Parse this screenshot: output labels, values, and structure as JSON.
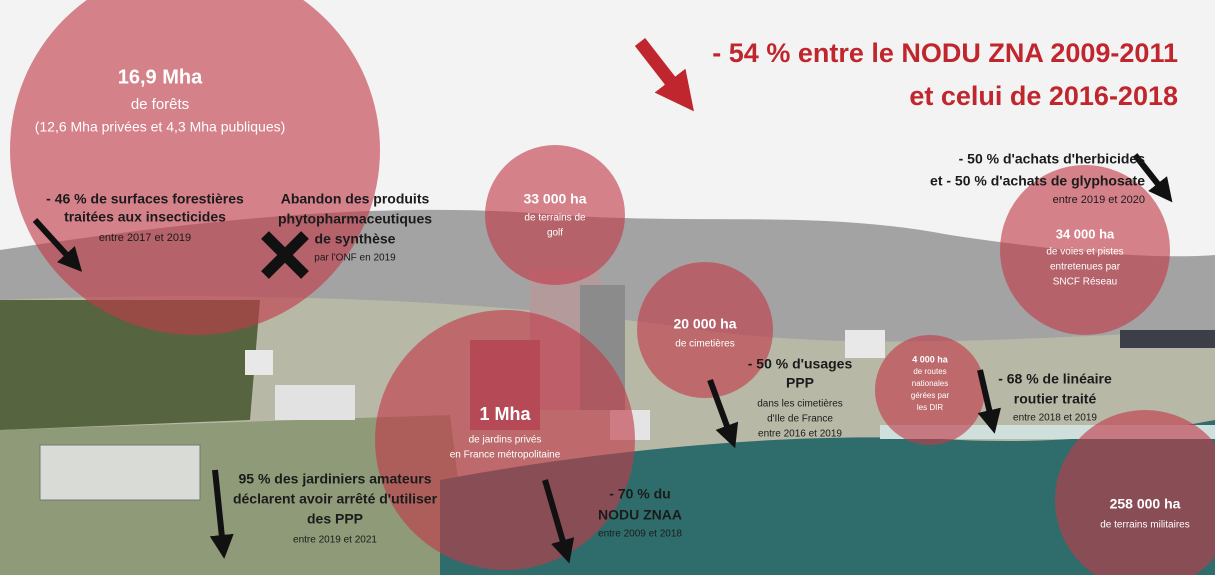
{
  "headline": [
    "- 54 % entre le NODU ZNA 2009-2011",
    "et celui de 2016-2018"
  ],
  "forests": [
    "16,9 Mha",
    "de forêts",
    "(12,6 Mha privées et 4,3 Mha publiques)"
  ],
  "insecticides": [
    "- 46 % de surfaces forestières",
    "traitées aux insecticides",
    "entre 2017 et 2019"
  ],
  "onf": [
    "Abandon des produits",
    "phytopharmaceutiques",
    "de synthèse",
    "par l'ONF en 2019"
  ],
  "golf": [
    "33 000 ha",
    "de terrains de",
    "golf"
  ],
  "herbicides": [
    "- 50 % d'achats d'herbicides",
    "et - 50 % d'achats de glyphosate",
    "entre 2019 et 2020"
  ],
  "sncf": [
    "34 000 ha",
    "de voies et pistes",
    "entretenues par",
    "SNCF Réseau"
  ],
  "cemeteries": [
    "20 000 ha",
    "de cimetières"
  ],
  "cemetery_use": [
    "- 50 % d'usages",
    "PPP",
    "dans les cimetières",
    "d'Ile de France",
    "entre 2016 et 2019"
  ],
  "roads": [
    "4 000 ha",
    "de routes",
    "nationales",
    "gérées par",
    "les DIR"
  ],
  "road_treated": [
    "- 68 % de linéaire",
    "routier traité",
    "entre 2018 et 2019"
  ],
  "gardens": [
    "1 Mha",
    "de jardins privés",
    "en France métropolitaine"
  ],
  "gardeners": [
    "95 % des jardiniers amateurs",
    "déclarent avoir arrêté d'utiliser",
    "des PPP",
    "entre 2019 et 2021"
  ],
  "nodu_znaa": [
    "- 70 % du",
    "NODU ZNAA",
    "entre 2009 et 2018"
  ],
  "military": [
    "258 000 ha",
    "de terrains militaires"
  ]
}
